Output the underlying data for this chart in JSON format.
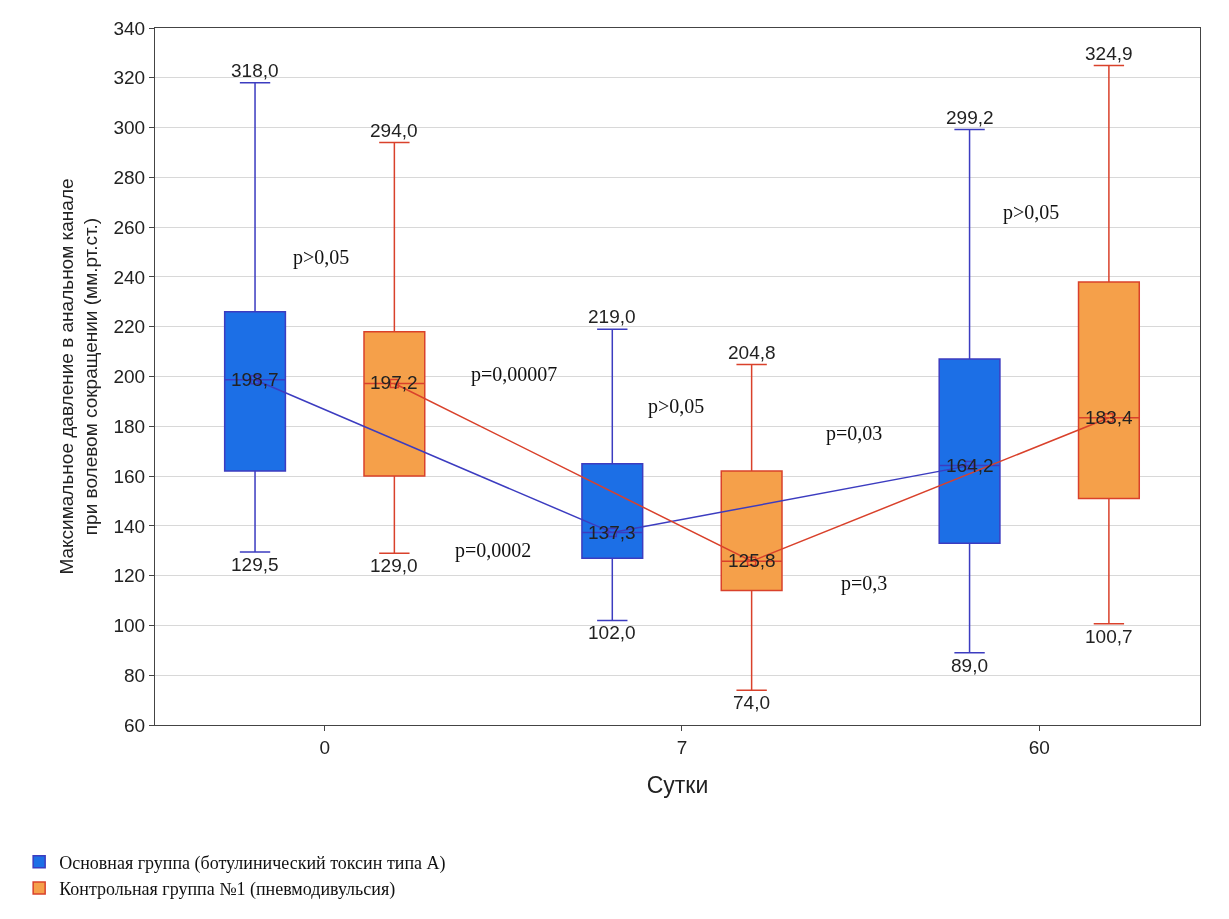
{
  "chart_data": {
    "type": "box",
    "xlabel": "Сутки",
    "ylabel": "Максимальное давление в анальном канале при волевом сокращении (мм.рт.ст.)",
    "categories": [
      "0",
      "7",
      "60"
    ],
    "ylim": [
      60,
      340
    ],
    "yticks": [
      60,
      80,
      100,
      120,
      140,
      160,
      180,
      200,
      220,
      240,
      260,
      280,
      300,
      320,
      340
    ],
    "grid": "y",
    "legend": "bottom left",
    "marker": "square",
    "series": [
      {
        "name": "Основная группа (ботулинический токсин типа А)",
        "color": "#1c6fe6",
        "boxes": [
          {
            "low": 129.5,
            "q1": 162,
            "median": 198.7,
            "q3": 226,
            "high": 318.0
          },
          {
            "low": 102.0,
            "q1": 127,
            "median": 137.3,
            "q3": 165,
            "high": 219.0
          },
          {
            "low": 89.0,
            "q1": 133,
            "median": 164.2,
            "q3": 207,
            "high": 299.2
          }
        ]
      },
      {
        "name": "Контрольная группа №1 (пневмодивульсия)",
        "color": "#f5a04a",
        "boxes": [
          {
            "low": 129.0,
            "q1": 160,
            "median": 197.2,
            "q3": 218,
            "high": 294.0
          },
          {
            "low": 74.0,
            "q1": 114,
            "median": 125.8,
            "q3": 162,
            "high": 204.8
          },
          {
            "low": 100.7,
            "q1": 151,
            "median": 183.4,
            "q3": 238,
            "high": 324.9
          }
        ]
      },
      {
        "type": "line",
        "color": "#3c3cc0",
        "values": [
          198.7,
          137.3,
          164.2
        ],
        "value_labels": [
          "198,7",
          "137,3",
          "164,2"
        ]
      },
      {
        "type": "line",
        "color": "#d9412b",
        "values": [
          197.2,
          125.8,
          183.4
        ],
        "value_labels": [
          "197,2",
          "125,8",
          "183,4"
        ]
      }
    ],
    "annotations": [
      "p>0,05",
      "p=0,00007",
      "p>0,05",
      "p=0,0002",
      "p=0,03",
      "p=0,3",
      "p>0,05",
      "318,0",
      "129,5",
      "294,0",
      "129,0",
      "219,0",
      "102,0",
      "204,8",
      "74,0",
      "299,2",
      "89,0",
      "324,9",
      "100,7"
    ]
  }
}
